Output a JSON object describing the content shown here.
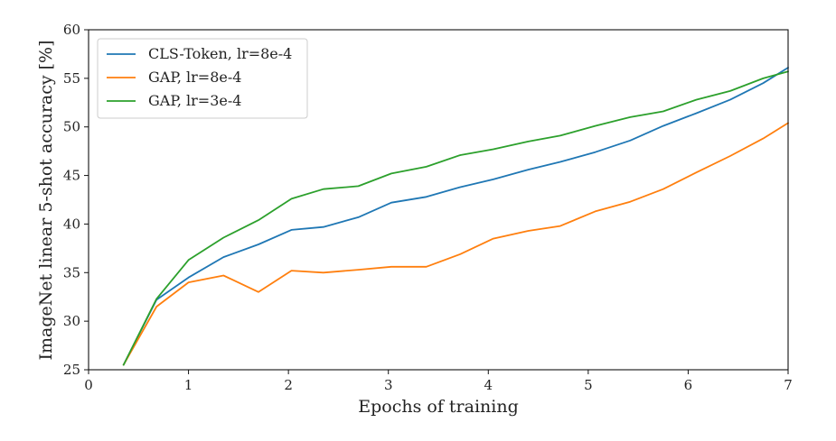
{
  "chart_data": {
    "type": "line",
    "xlabel": "Epochs of training",
    "ylabel": "ImageNet linear 5-shot accuracy [%]",
    "xlim": [
      0,
      7
    ],
    "ylim": [
      25,
      60
    ],
    "xticks": [
      0,
      1,
      2,
      3,
      4,
      5,
      6,
      7
    ],
    "yticks": [
      25,
      30,
      35,
      40,
      45,
      50,
      55,
      60
    ],
    "grid": false,
    "legend_position": "top-left",
    "series": [
      {
        "name": "CLS-Token, lr=8e-4",
        "color": "#1f77b4",
        "x": [
          0.35,
          0.68,
          1.0,
          1.35,
          1.7,
          2.03,
          2.35,
          2.7,
          3.03,
          3.38,
          3.72,
          4.05,
          4.4,
          4.72,
          5.07,
          5.42,
          5.75,
          6.08,
          6.42,
          6.75,
          7.0
        ],
        "y": [
          25.5,
          32.2,
          34.5,
          36.6,
          37.9,
          39.4,
          39.7,
          40.7,
          42.2,
          42.8,
          43.8,
          44.6,
          45.6,
          46.4,
          47.4,
          48.6,
          50.1,
          51.4,
          52.8,
          54.5,
          56.1
        ]
      },
      {
        "name": "GAP, lr=8e-4",
        "color": "#ff7f0e",
        "x": [
          0.35,
          0.68,
          1.0,
          1.35,
          1.7,
          2.03,
          2.35,
          2.7,
          3.03,
          3.38,
          3.72,
          4.05,
          4.4,
          4.72,
          5.07,
          5.42,
          5.75,
          6.08,
          6.42,
          6.75,
          7.0
        ],
        "y": [
          25.5,
          31.5,
          34.0,
          34.7,
          33.0,
          35.2,
          35.0,
          35.3,
          35.6,
          35.6,
          36.9,
          38.5,
          39.3,
          39.8,
          41.3,
          42.3,
          43.6,
          45.3,
          47.0,
          48.8,
          50.4
        ]
      },
      {
        "name": "GAP, lr=3e-4",
        "color": "#2ca02c",
        "x": [
          0.35,
          0.68,
          1.0,
          1.35,
          1.7,
          2.03,
          2.35,
          2.7,
          3.03,
          3.38,
          3.72,
          4.05,
          4.4,
          4.72,
          5.07,
          5.42,
          5.75,
          6.08,
          6.42,
          6.75,
          7.0
        ],
        "y": [
          25.5,
          32.3,
          36.3,
          38.6,
          40.4,
          42.6,
          43.6,
          43.9,
          45.2,
          45.9,
          47.1,
          47.7,
          48.5,
          49.1,
          50.1,
          51.0,
          51.6,
          52.8,
          53.7,
          55.0,
          55.7
        ]
      }
    ]
  }
}
